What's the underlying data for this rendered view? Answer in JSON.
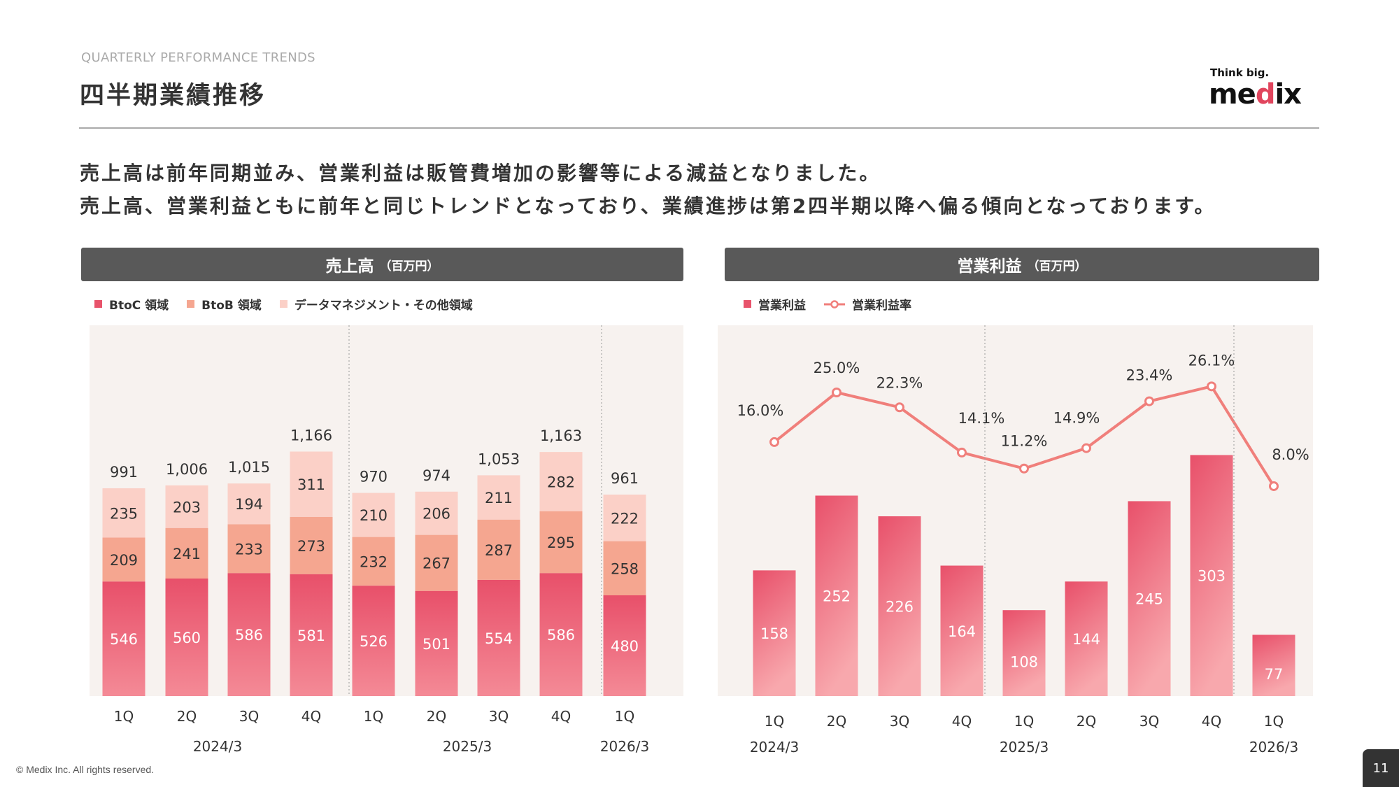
{
  "header": {
    "eyebrow": "QUARTERLY PERFORMANCE TRENDS",
    "title": "四半期業績推移",
    "logo_tagline": "Think big.",
    "logo_text": "medix"
  },
  "lead": [
    "売上高は前年同期並み、営業利益は販管費増加の影響等による減益となりました。",
    "売上高、営業利益ともに前年と同じトレンドとなっており、業績進捗は第2四半期以降へ偏る傾向となっております。"
  ],
  "colors": {
    "btoc": "#e8536b",
    "btob": "#f5a690",
    "other": "#fbd0c7",
    "op_bar": "#e9506a",
    "op_line": "#f07f7b",
    "header_bg": "#595959"
  },
  "chart_data": [
    {
      "type": "bar",
      "stacked": true,
      "title": "売上高",
      "unit": "（百万円）",
      "categories": [
        "1Q",
        "2Q",
        "3Q",
        "4Q",
        "1Q",
        "2Q",
        "3Q",
        "4Q",
        "1Q"
      ],
      "groups": [
        {
          "label": "2024/3",
          "count": 4
        },
        {
          "label": "2025/3",
          "count": 4
        },
        {
          "label": "2026/3",
          "count": 1
        }
      ],
      "series": [
        {
          "name": "BtoC 領域",
          "values": [
            546,
            560,
            586,
            581,
            526,
            501,
            554,
            586,
            480
          ]
        },
        {
          "name": "BtoB 領域",
          "values": [
            209,
            241,
            233,
            273,
            232,
            267,
            287,
            295,
            258
          ]
        },
        {
          "name": "データマネジメント・その他領域",
          "values": [
            235,
            203,
            194,
            311,
            210,
            206,
            211,
            282,
            222
          ]
        }
      ],
      "totals": [
        "991",
        "1,006",
        "1,015",
        "1,166",
        "970",
        "974",
        "1,053",
        "1,163",
        "961"
      ]
    },
    {
      "type": "bar+line",
      "title": "営業利益",
      "unit": "（百万円）",
      "categories": [
        "1Q",
        "2Q",
        "3Q",
        "4Q",
        "1Q",
        "2Q",
        "3Q",
        "4Q",
        "1Q"
      ],
      "groups": [
        {
          "label": "2024/3",
          "count": 4
        },
        {
          "label": "2025/3",
          "count": 4
        },
        {
          "label": "2026/3",
          "count": 1
        }
      ],
      "series": [
        {
          "name": "営業利益",
          "type": "bar",
          "values": [
            158,
            252,
            226,
            164,
            108,
            144,
            245,
            303,
            77
          ]
        },
        {
          "name": "営業利益率",
          "type": "line",
          "values": [
            16.0,
            25.0,
            22.3,
            14.1,
            11.2,
            14.9,
            23.4,
            26.1,
            8.0
          ]
        }
      ]
    }
  ],
  "footer": {
    "copyright": "© Medix Inc. All rights reserved.",
    "page": "11"
  }
}
